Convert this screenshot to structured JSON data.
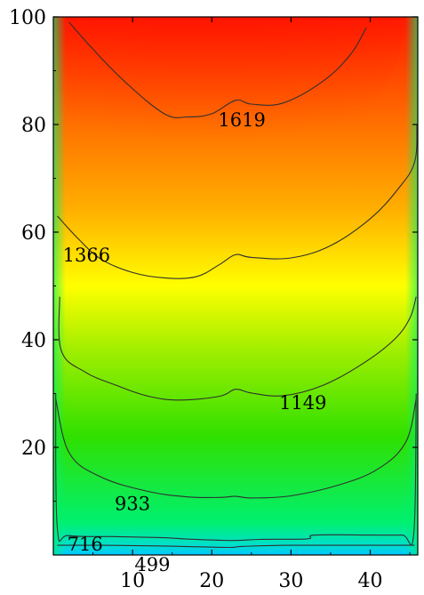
{
  "chart_data": {
    "type": "contour",
    "title": "",
    "xlabel": "",
    "ylabel": "",
    "xlim": [
      0,
      46
    ],
    "ylim": [
      0,
      100
    ],
    "xticks": [
      10,
      20,
      30,
      40
    ],
    "yticks": [
      20,
      40,
      60,
      80,
      100
    ],
    "xtick_labels": [
      "10",
      "20",
      "30",
      "40"
    ],
    "ytick_labels": [
      "20",
      "40",
      "60",
      "80",
      "100"
    ],
    "grid": false,
    "colormap": [
      "#00c8ff",
      "#00f070",
      "#30e000",
      "#a0ee00",
      "#ffff00",
      "#ffb000",
      "#ff7000",
      "#ff1a00"
    ],
    "value_range": [
      250,
      1750
    ],
    "contour_levels": [
      {
        "value": 499,
        "label": "499",
        "points": [
          [
            0.5,
            1.8
          ],
          [
            6,
            1.8
          ],
          [
            12,
            1.7
          ],
          [
            16,
            1.6
          ],
          [
            22,
            1.4
          ],
          [
            24,
            1.6
          ],
          [
            30,
            1.8
          ],
          [
            40,
            1.8
          ],
          [
            45.6,
            1.8
          ]
        ]
      },
      {
        "value": 716,
        "label": "716",
        "points": [
          [
            0.3,
            30
          ],
          [
            0.5,
            5
          ],
          [
            2,
            3.6
          ],
          [
            8,
            3.4
          ],
          [
            14,
            3.2
          ],
          [
            16.5,
            3.0
          ],
          [
            22.5,
            2.7
          ],
          [
            26,
            2.9
          ],
          [
            32,
            3.0
          ],
          [
            33,
            3.7
          ],
          [
            40,
            3.7
          ],
          [
            44,
            3.7
          ],
          [
            45.5,
            4
          ],
          [
            45.8,
            30
          ]
        ]
      },
      {
        "value": 933,
        "label": "933",
        "points": [
          [
            0.3,
            29
          ],
          [
            2,
            19
          ],
          [
            6,
            14.5
          ],
          [
            12,
            11.8
          ],
          [
            17,
            10.8
          ],
          [
            21,
            10.7
          ],
          [
            23,
            10.9
          ],
          [
            25,
            10.6
          ],
          [
            30,
            11.0
          ],
          [
            36,
            13.0
          ],
          [
            41,
            16.0
          ],
          [
            44.5,
            21.0
          ],
          [
            45.8,
            29
          ]
        ]
      },
      {
        "value": 1149,
        "label": "1149",
        "points": [
          [
            0.8,
            48
          ],
          [
            1,
            38
          ],
          [
            4,
            34
          ],
          [
            8,
            31.5
          ],
          [
            12,
            29.5
          ],
          [
            16,
            28.8
          ],
          [
            21,
            29.5
          ],
          [
            23,
            30.8
          ],
          [
            25,
            30.1
          ],
          [
            29,
            29.6
          ],
          [
            34,
            31.5
          ],
          [
            39,
            35.5
          ],
          [
            43,
            40
          ],
          [
            45,
            44
          ],
          [
            45.8,
            48
          ]
        ]
      },
      {
        "value": 1366,
        "label": "1366",
        "points": [
          [
            0.5,
            63
          ],
          [
            3,
            59
          ],
          [
            6,
            55
          ],
          [
            10,
            52.5
          ],
          [
            14,
            51.5
          ],
          [
            18,
            51.7
          ],
          [
            21,
            54
          ],
          [
            23,
            55.8
          ],
          [
            25,
            55.3
          ],
          [
            30,
            55.2
          ],
          [
            35,
            57.5
          ],
          [
            40,
            62.5
          ],
          [
            43.5,
            68
          ],
          [
            45.6,
            73
          ],
          [
            45.9,
            80
          ]
        ]
      },
      {
        "value": 1619,
        "label": "1619",
        "points": [
          [
            2,
            99
          ],
          [
            5,
            94
          ],
          [
            9,
            88
          ],
          [
            14,
            82
          ],
          [
            17,
            81.4
          ],
          [
            20,
            82
          ],
          [
            23,
            84.5
          ],
          [
            25,
            83.8
          ],
          [
            29,
            84
          ],
          [
            34,
            88
          ],
          [
            37.5,
            93
          ],
          [
            39.5,
            98
          ]
        ]
      }
    ],
    "contour_labels": [
      {
        "text": "1619",
        "x": 23.8,
        "y": 80.8
      },
      {
        "text": "1366",
        "x": 4.2,
        "y": 55.7
      },
      {
        "text": "1149",
        "x": 31.5,
        "y": 28.3
      },
      {
        "text": "933",
        "x": 10,
        "y": 9.5
      },
      {
        "text": "716",
        "x": 4.0,
        "y": 2.0
      },
      {
        "text": "499",
        "x": 12.5,
        "y": -1.8
      }
    ]
  }
}
